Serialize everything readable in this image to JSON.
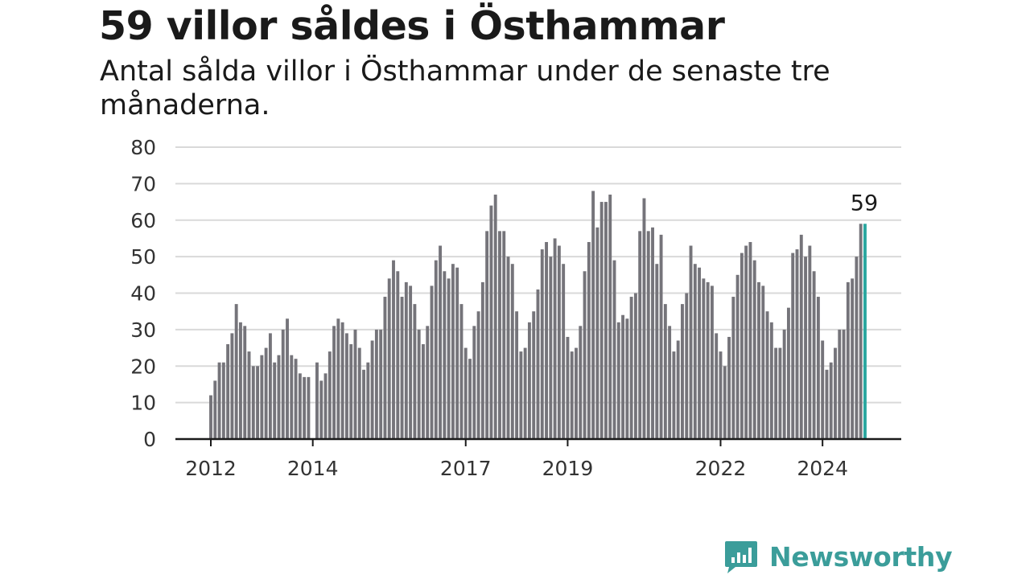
{
  "header": {
    "title": "59 villor såldes i Östhammar",
    "subtitle": "Antal sålda villor i Östhammar under de senaste tre månaderna."
  },
  "brand": {
    "name": "Newsworthy",
    "color": "#3b9d9a"
  },
  "colors": {
    "bar": "#75747a",
    "highlight": "#2aa69f",
    "grid": "#d9d9d9",
    "axis": "#1a1a1a"
  },
  "chart_data": {
    "type": "bar",
    "title": "59 villor såldes i Östhammar",
    "subtitle": "Antal sålda villor i Östhammar under de senaste tre månaderna.",
    "xlabel": "",
    "ylabel": "",
    "ylim": [
      0,
      80
    ],
    "yticks": [
      0,
      10,
      20,
      30,
      40,
      50,
      60,
      70,
      80
    ],
    "grid": true,
    "x_start": "2012-01",
    "x_end": "2025-01",
    "xticks": [
      {
        "label": "2012",
        "date": "2012-01"
      },
      {
        "label": "2014",
        "date": "2014-01"
      },
      {
        "label": "2017",
        "date": "2017-01"
      },
      {
        "label": "2019",
        "date": "2019-01"
      },
      {
        "label": "2022",
        "date": "2022-01"
      },
      {
        "label": "2024",
        "date": "2024-01"
      }
    ],
    "series": [
      {
        "values": [
          {
            "date": "2012-01",
            "value": 12
          },
          {
            "date": "2012-02",
            "value": 16
          },
          {
            "date": "2012-03",
            "value": 21
          },
          {
            "date": "2012-04",
            "value": 21
          },
          {
            "date": "2012-05",
            "value": 26
          },
          {
            "date": "2012-06",
            "value": 29
          },
          {
            "date": "2012-07",
            "value": 37
          },
          {
            "date": "2012-08",
            "value": 32
          },
          {
            "date": "2012-09",
            "value": 31
          },
          {
            "date": "2012-10",
            "value": 24
          },
          {
            "date": "2012-11",
            "value": 20
          },
          {
            "date": "2012-12",
            "value": 20
          },
          {
            "date": "2013-01",
            "value": 23
          },
          {
            "date": "2013-02",
            "value": 25
          },
          {
            "date": "2013-03",
            "value": 29
          },
          {
            "date": "2013-04",
            "value": 21
          },
          {
            "date": "2013-05",
            "value": 23
          },
          {
            "date": "2013-06",
            "value": 30
          },
          {
            "date": "2013-07",
            "value": 33
          },
          {
            "date": "2013-08",
            "value": 23
          },
          {
            "date": "2013-09",
            "value": 22
          },
          {
            "date": "2013-10",
            "value": 18
          },
          {
            "date": "2013-11",
            "value": 17
          },
          {
            "date": "2013-12",
            "value": 17
          },
          {
            "date": "2014-02",
            "value": 21
          },
          {
            "date": "2014-03",
            "value": 16
          },
          {
            "date": "2014-04",
            "value": 18
          },
          {
            "date": "2014-05",
            "value": 24
          },
          {
            "date": "2014-06",
            "value": 31
          },
          {
            "date": "2014-07",
            "value": 33
          },
          {
            "date": "2014-08",
            "value": 32
          },
          {
            "date": "2014-09",
            "value": 29
          },
          {
            "date": "2014-10",
            "value": 26
          },
          {
            "date": "2014-11",
            "value": 30
          },
          {
            "date": "2014-12",
            "value": 25
          },
          {
            "date": "2015-01",
            "value": 19
          },
          {
            "date": "2015-02",
            "value": 21
          },
          {
            "date": "2015-03",
            "value": 27
          },
          {
            "date": "2015-04",
            "value": 30
          },
          {
            "date": "2015-05",
            "value": 30
          },
          {
            "date": "2015-06",
            "value": 39
          },
          {
            "date": "2015-07",
            "value": 44
          },
          {
            "date": "2015-08",
            "value": 49
          },
          {
            "date": "2015-09",
            "value": 46
          },
          {
            "date": "2015-10",
            "value": 39
          },
          {
            "date": "2015-11",
            "value": 43
          },
          {
            "date": "2015-12",
            "value": 42
          },
          {
            "date": "2016-01",
            "value": 37
          },
          {
            "date": "2016-02",
            "value": 30
          },
          {
            "date": "2016-03",
            "value": 26
          },
          {
            "date": "2016-04",
            "value": 31
          },
          {
            "date": "2016-05",
            "value": 42
          },
          {
            "date": "2016-06",
            "value": 49
          },
          {
            "date": "2016-07",
            "value": 53
          },
          {
            "date": "2016-08",
            "value": 46
          },
          {
            "date": "2016-09",
            "value": 44
          },
          {
            "date": "2016-10",
            "value": 48
          },
          {
            "date": "2016-11",
            "value": 47
          },
          {
            "date": "2016-12",
            "value": 37
          },
          {
            "date": "2017-01",
            "value": 25
          },
          {
            "date": "2017-02",
            "value": 22
          },
          {
            "date": "2017-03",
            "value": 31
          },
          {
            "date": "2017-04",
            "value": 35
          },
          {
            "date": "2017-05",
            "value": 43
          },
          {
            "date": "2017-06",
            "value": 57
          },
          {
            "date": "2017-07",
            "value": 64
          },
          {
            "date": "2017-08",
            "value": 67
          },
          {
            "date": "2017-09",
            "value": 57
          },
          {
            "date": "2017-10",
            "value": 57
          },
          {
            "date": "2017-11",
            "value": 50
          },
          {
            "date": "2017-12",
            "value": 48
          },
          {
            "date": "2018-01",
            "value": 35
          },
          {
            "date": "2018-02",
            "value": 24
          },
          {
            "date": "2018-03",
            "value": 25
          },
          {
            "date": "2018-04",
            "value": 32
          },
          {
            "date": "2018-05",
            "value": 35
          },
          {
            "date": "2018-06",
            "value": 41
          },
          {
            "date": "2018-07",
            "value": 52
          },
          {
            "date": "2018-08",
            "value": 54
          },
          {
            "date": "2018-09",
            "value": 50
          },
          {
            "date": "2018-10",
            "value": 55
          },
          {
            "date": "2018-11",
            "value": 53
          },
          {
            "date": "2018-12",
            "value": 48
          },
          {
            "date": "2019-01",
            "value": 28
          },
          {
            "date": "2019-02",
            "value": 24
          },
          {
            "date": "2019-03",
            "value": 25
          },
          {
            "date": "2019-04",
            "value": 31
          },
          {
            "date": "2019-05",
            "value": 46
          },
          {
            "date": "2019-06",
            "value": 54
          },
          {
            "date": "2019-07",
            "value": 68
          },
          {
            "date": "2019-08",
            "value": 58
          },
          {
            "date": "2019-09",
            "value": 65
          },
          {
            "date": "2019-10",
            "value": 65
          },
          {
            "date": "2019-11",
            "value": 67
          },
          {
            "date": "2019-12",
            "value": 49
          },
          {
            "date": "2020-01",
            "value": 32
          },
          {
            "date": "2020-02",
            "value": 34
          },
          {
            "date": "2020-03",
            "value": 33
          },
          {
            "date": "2020-04",
            "value": 39
          },
          {
            "date": "2020-05",
            "value": 40
          },
          {
            "date": "2020-06",
            "value": 57
          },
          {
            "date": "2020-07",
            "value": 66
          },
          {
            "date": "2020-08",
            "value": 57
          },
          {
            "date": "2020-09",
            "value": 58
          },
          {
            "date": "2020-10",
            "value": 48
          },
          {
            "date": "2020-11",
            "value": 56
          },
          {
            "date": "2020-12",
            "value": 37
          },
          {
            "date": "2021-01",
            "value": 31
          },
          {
            "date": "2021-02",
            "value": 24
          },
          {
            "date": "2021-03",
            "value": 27
          },
          {
            "date": "2021-04",
            "value": 37
          },
          {
            "date": "2021-05",
            "value": 40
          },
          {
            "date": "2021-06",
            "value": 53
          },
          {
            "date": "2021-07",
            "value": 48
          },
          {
            "date": "2021-08",
            "value": 47
          },
          {
            "date": "2021-09",
            "value": 44
          },
          {
            "date": "2021-10",
            "value": 43
          },
          {
            "date": "2021-11",
            "value": 42
          },
          {
            "date": "2021-12",
            "value": 29
          },
          {
            "date": "2022-01",
            "value": 24
          },
          {
            "date": "2022-02",
            "value": 20
          },
          {
            "date": "2022-03",
            "value": 28
          },
          {
            "date": "2022-04",
            "value": 39
          },
          {
            "date": "2022-05",
            "value": 45
          },
          {
            "date": "2022-06",
            "value": 51
          },
          {
            "date": "2022-07",
            "value": 53
          },
          {
            "date": "2022-08",
            "value": 54
          },
          {
            "date": "2022-09",
            "value": 49
          },
          {
            "date": "2022-10",
            "value": 43
          },
          {
            "date": "2022-11",
            "value": 42
          },
          {
            "date": "2022-12",
            "value": 35
          },
          {
            "date": "2023-01",
            "value": 32
          },
          {
            "date": "2023-02",
            "value": 25
          },
          {
            "date": "2023-03",
            "value": 25
          },
          {
            "date": "2023-04",
            "value": 30
          },
          {
            "date": "2023-05",
            "value": 36
          },
          {
            "date": "2023-06",
            "value": 51
          },
          {
            "date": "2023-07",
            "value": 52
          },
          {
            "date": "2023-08",
            "value": 56
          },
          {
            "date": "2023-09",
            "value": 50
          },
          {
            "date": "2023-10",
            "value": 53
          },
          {
            "date": "2023-11",
            "value": 46
          },
          {
            "date": "2023-12",
            "value": 39
          },
          {
            "date": "2024-01",
            "value": 27
          },
          {
            "date": "2024-02",
            "value": 19
          },
          {
            "date": "2024-03",
            "value": 21
          },
          {
            "date": "2024-04",
            "value": 25
          },
          {
            "date": "2024-05",
            "value": 30
          },
          {
            "date": "2024-06",
            "value": 30
          },
          {
            "date": "2024-07",
            "value": 43
          },
          {
            "date": "2024-08",
            "value": 44
          },
          {
            "date": "2024-09",
            "value": 50
          },
          {
            "date": "2024-10",
            "value": 59
          },
          {
            "date": "2024-11",
            "value": 59
          }
        ]
      }
    ],
    "highlight": {
      "date": "2024-11",
      "value": 59,
      "label": "59"
    }
  }
}
